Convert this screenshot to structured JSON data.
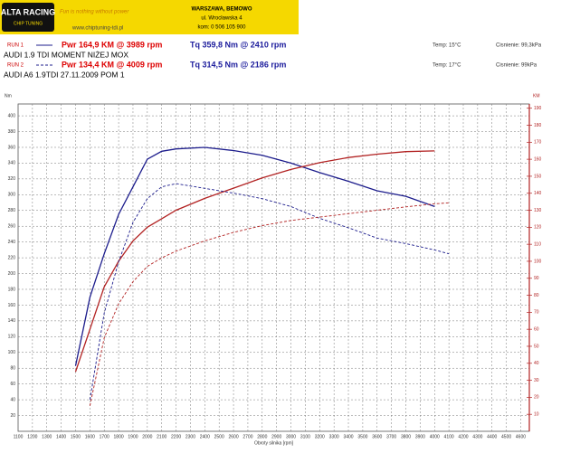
{
  "header": {
    "logo": "ALTA RACING",
    "logo_sub": "CHIP TUNING",
    "tagline": "Fun is nothing without power",
    "site": "www.chiptuning-tdi.pl",
    "city": "WARSZAWA, BEMOWO",
    "street": "ul. Wrocławska 4",
    "phone": "kom: 0 506 105 900"
  },
  "chart_data": {
    "type": "line",
    "ylabel": "Nm",
    "y2label": "KM",
    "xlabel": "Obroty silnika [rpm]",
    "torque_color": "#1c1c8c",
    "power_color": "#b22222",
    "grid": true,
    "xlim": [
      1100,
      4660
    ],
    "ylim": [
      0,
      415
    ],
    "y2lim": [
      0,
      192.5
    ],
    "xticks": [
      1100,
      1200,
      1300,
      1400,
      1500,
      1600,
      1700,
      1800,
      1900,
      2000,
      2100,
      2200,
      2300,
      2400,
      2500,
      2600,
      2700,
      2800,
      2900,
      3000,
      3100,
      3200,
      3300,
      3400,
      3500,
      3600,
      3700,
      3800,
      3900,
      4000,
      4100,
      4200,
      4300,
      4400,
      4500,
      4600
    ],
    "yticks": [
      20,
      40,
      60,
      80,
      100,
      120,
      140,
      160,
      180,
      200,
      220,
      240,
      260,
      280,
      300,
      320,
      340,
      360,
      380,
      400
    ],
    "y2ticks": [
      10,
      20,
      30,
      40,
      50,
      60,
      70,
      80,
      90,
      100,
      110,
      120,
      130,
      140,
      150,
      160,
      170,
      180,
      190
    ],
    "runs": [
      {
        "label": "RUN 1",
        "dashed": false,
        "pwr": "Pwr 164,9 KM @ 3989 rpm",
        "tq": "Tq 359,8 Nm @ 2410 rpm",
        "temp": "Temp: 15°C",
        "pressure": "Cisnienie: 99,3kPa",
        "title": "AUDI  1.9 TDI   MOMENT NIŻEJ   MOX",
        "x": [
          1500,
          1600,
          1700,
          1800,
          1900,
          2000,
          2100,
          2200,
          2400,
          2600,
          2800,
          3000,
          3200,
          3400,
          3600,
          3800,
          4000
        ],
        "torque": [
          83,
          170,
          225,
          275,
          310,
          345,
          355,
          358,
          360,
          356,
          350,
          340,
          328,
          317,
          305,
          298,
          285
        ],
        "power": [
          35,
          60,
          85,
          100,
          112,
          120,
          125,
          130,
          137,
          143,
          149,
          154,
          158,
          161,
          163,
          164.5,
          164.9
        ]
      },
      {
        "label": "RUN 2",
        "dashed": true,
        "pwr": "Pwr 134,4 KM @ 4009 rpm",
        "tq": "Tq 314,5 Nm @ 2186 rpm",
        "temp": "Temp: 17°C",
        "pressure": "Cisnienie: 99kPa",
        "title": "AUDI  A6  1.9TDI  27.11.2009  POM 1",
        "x": [
          1600,
          1700,
          1800,
          1900,
          2000,
          2100,
          2200,
          2400,
          2600,
          2800,
          3000,
          3200,
          3400,
          3600,
          3800,
          4000,
          4100
        ],
        "torque": [
          40,
          150,
          215,
          265,
          295,
          310,
          314,
          308,
          302,
          295,
          285,
          270,
          258,
          245,
          238,
          230,
          225
        ],
        "power": [
          15,
          55,
          75,
          88,
          97,
          102,
          106,
          112,
          117,
          121,
          124,
          126,
          128,
          130,
          132,
          133.8,
          134.4
        ]
      }
    ]
  }
}
